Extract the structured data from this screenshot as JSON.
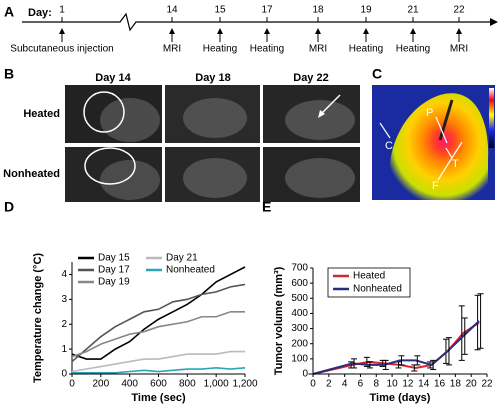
{
  "panel_labels": [
    "A",
    "B",
    "C",
    "D",
    "E"
  ],
  "timeline": {
    "prefix": "Day:",
    "days": [
      {
        "day": "1",
        "event": "Subcutaneous injection"
      },
      {
        "day": "14",
        "event": "MRI"
      },
      {
        "day": "15",
        "event": "Heating"
      },
      {
        "day": "17",
        "event": "Heating"
      },
      {
        "day": "18",
        "event": "MRI"
      },
      {
        "day": "19",
        "event": "Heating"
      },
      {
        "day": "21",
        "event": "Heating"
      },
      {
        "day": "22",
        "event": "MRI"
      }
    ]
  },
  "mri": {
    "columns": [
      "Day 14",
      "Day 18",
      "Day 22"
    ],
    "rows": [
      "Heated",
      "Nonheated"
    ]
  },
  "thermal": {
    "labels": [
      "P",
      "C",
      "T",
      "F"
    ]
  },
  "chart_data": [
    {
      "type": "line",
      "xlabel": "Time (sec)",
      "ylabel": "Temperature change (°C)",
      "x": [
        0,
        100,
        200,
        300,
        400,
        500,
        600,
        700,
        800,
        900,
        1000,
        1100,
        1200
      ],
      "xlim": [
        0,
        1200
      ],
      "xticks": [
        0,
        200,
        400,
        600,
        800,
        {
          "value": 1000,
          "label": "1,000"
        },
        {
          "value": 1200,
          "label": "1,200"
        }
      ],
      "ylim": [
        0,
        4.5
      ],
      "yticks": [
        0,
        1,
        2,
        3,
        4
      ],
      "series": [
        {
          "name": "Day 15",
          "color": "#000000",
          "values": [
            0.8,
            0.6,
            0.6,
            1.0,
            1.3,
            1.8,
            2.2,
            2.5,
            2.8,
            3.2,
            3.7,
            4.0,
            4.3
          ]
        },
        {
          "name": "Day 17",
          "color": "#555555",
          "values": [
            0.5,
            1.0,
            1.5,
            1.9,
            2.2,
            2.5,
            2.6,
            2.9,
            3.0,
            3.2,
            3.3,
            3.5,
            3.6
          ]
        },
        {
          "name": "Day 19",
          "color": "#888888",
          "values": [
            0.7,
            0.9,
            1.2,
            1.4,
            1.6,
            1.7,
            1.9,
            2.0,
            2.1,
            2.3,
            2.3,
            2.5,
            2.5
          ]
        },
        {
          "name": "Day 21",
          "color": "#bbbbbb",
          "values": [
            0.1,
            0.2,
            0.3,
            0.4,
            0.5,
            0.6,
            0.6,
            0.7,
            0.8,
            0.8,
            0.8,
            0.9,
            0.9
          ]
        },
        {
          "name": "Nonheated",
          "color": "#2aa6b8",
          "values": [
            0.05,
            0.05,
            0.05,
            0.05,
            0.1,
            0.15,
            0.1,
            0.15,
            0.2,
            0.2,
            0.25,
            0.2,
            0.25
          ]
        }
      ]
    },
    {
      "type": "line",
      "xlabel": "Time (days)",
      "ylabel": "Tumor volume (mm³)",
      "x": [
        0,
        5,
        7,
        9,
        11,
        13,
        15,
        17,
        19,
        21
      ],
      "xlim": [
        0,
        22
      ],
      "xticks": [
        0,
        2,
        4,
        6,
        8,
        10,
        12,
        14,
        16,
        18,
        20,
        22
      ],
      "ylim": [
        0,
        700
      ],
      "yticks": [
        0,
        100,
        200,
        300,
        400,
        500,
        600,
        700
      ],
      "series": [
        {
          "name": "Heated",
          "color": "#d9262e",
          "values": [
            0,
            60,
            80,
            70,
            60,
            40,
            60,
            150,
            270,
            340
          ],
          "errors": [
            0,
            20,
            30,
            20,
            20,
            20,
            20,
            80,
            180,
            180
          ]
        },
        {
          "name": "Nonheated",
          "color": "#2b2d7a",
          "values": [
            0,
            70,
            60,
            60,
            90,
            90,
            60,
            150,
            250,
            350
          ],
          "errors": [
            0,
            30,
            20,
            30,
            30,
            30,
            30,
            90,
            120,
            180
          ]
        }
      ]
    }
  ]
}
